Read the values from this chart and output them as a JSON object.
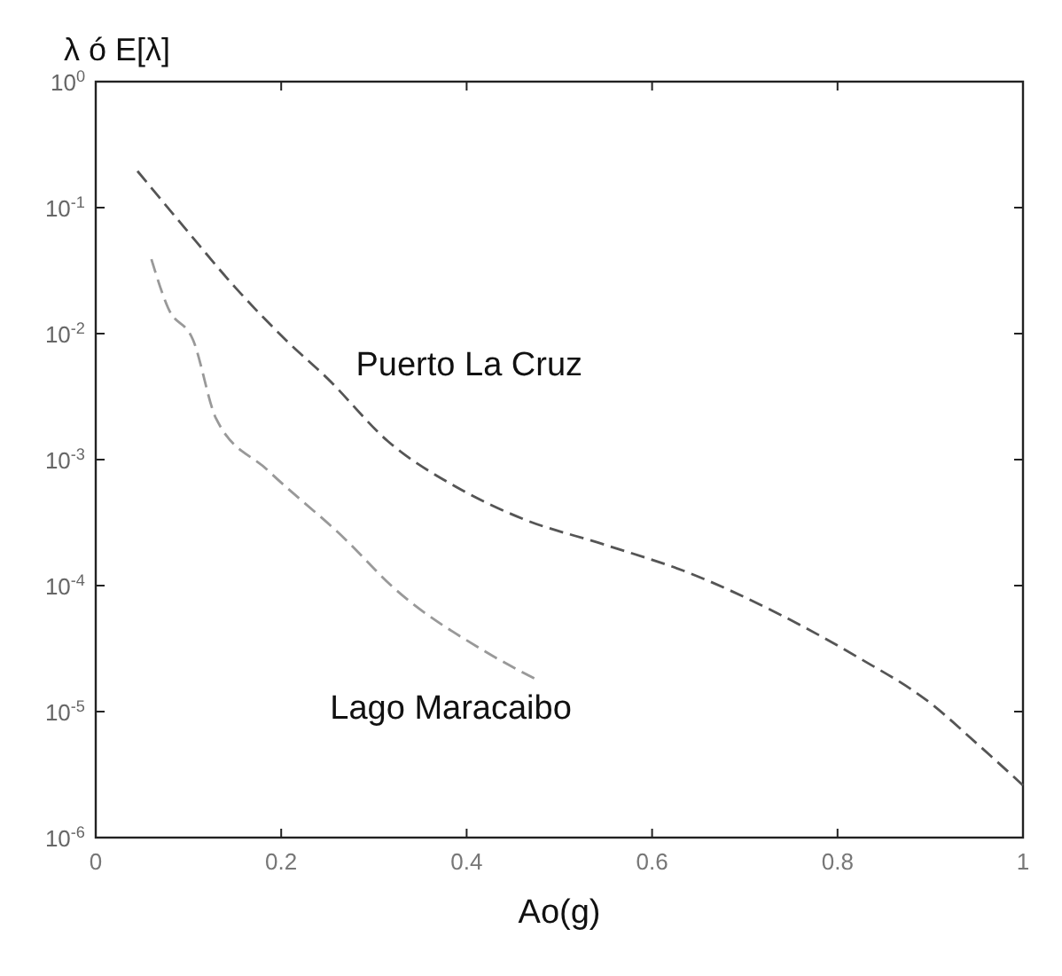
{
  "chart_data": {
    "type": "line",
    "xlabel": "Ao(g)",
    "ylabel": "λ ó E[λ]",
    "log": "y",
    "grid": false,
    "marker": "none",
    "xlim": [
      0,
      1
    ],
    "ylim": [
      1e-06,
      1
    ],
    "xticks": [
      0,
      0.2,
      0.4,
      0.6,
      0.8,
      1
    ],
    "yticks": [
      {
        "value": 1,
        "label": "10$^{0}$"
      },
      {
        "value": 0.1,
        "label": "10$^{-1}$"
      },
      {
        "value": 0.01,
        "label": "10$^{-2}$"
      },
      {
        "value": 0.001,
        "label": "10$^{-3}$"
      },
      {
        "value": 0.0001,
        "label": "10$^{-4}$"
      },
      {
        "value": 1e-05,
        "label": "10$^{-5}$"
      },
      {
        "value": 1e-06,
        "label": "10$^{-6}$"
      }
    ],
    "series": [
      {
        "name": "Puerto La Cruz",
        "color": "#555555",
        "line_style": "dashed",
        "x": [
          0.045,
          0.096,
          0.151,
          0.205,
          0.25,
          0.315,
          0.39,
          0.46,
          0.55,
          0.64,
          0.73,
          0.82,
          0.9,
          0.95,
          1.0
        ],
        "values": [
          0.195,
          0.069,
          0.023,
          0.0089,
          0.0044,
          0.0014,
          0.0006,
          0.00034,
          0.00021,
          0.000126,
          6.3e-05,
          2.75e-05,
          1.17e-05,
          5.6e-06,
          2.6e-06
        ]
      },
      {
        "name": "Lago Maracaibo",
        "color": "#999999",
        "line_style": "dashed",
        "x": [
          0.06,
          0.078,
          0.105,
          0.13,
          0.185,
          0.27,
          0.32,
          0.42,
          0.475
        ],
        "values": [
          0.039,
          0.016,
          0.0089,
          0.0021,
          0.00083,
          0.00023,
          9.8e-05,
          3e-05,
          1.8e-05
        ]
      }
    ]
  }
}
